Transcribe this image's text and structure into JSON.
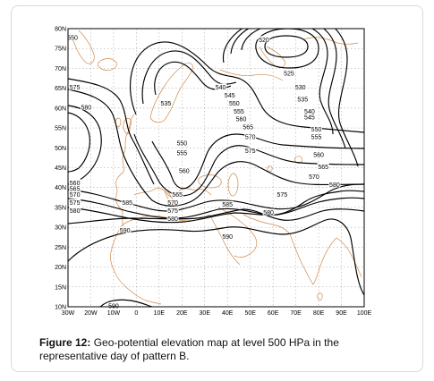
{
  "map": {
    "lat_labels": [
      "10N",
      "15N",
      "20N",
      "25N",
      "30N",
      "35N",
      "40N",
      "45N",
      "50N",
      "55N",
      "60N",
      "65N",
      "70N",
      "75N",
      "80N"
    ],
    "lon_labels": [
      "30W",
      "20W",
      "10W",
      "0",
      "10E",
      "20E",
      "30E",
      "40E",
      "50E",
      "60E",
      "70E",
      "80E",
      "90E",
      "100E"
    ],
    "contour_labels": [
      {
        "text": "550",
        "lon": -28,
        "lat": 77.5
      },
      {
        "text": "575",
        "lon": -27,
        "lat": 65
      },
      {
        "text": "580",
        "lon": -22,
        "lat": 60
      },
      {
        "text": "520",
        "lon": 56,
        "lat": 77
      },
      {
        "text": "525",
        "lon": 67,
        "lat": 68.5
      },
      {
        "text": "530",
        "lon": 72,
        "lat": 65
      },
      {
        "text": "535",
        "lon": 73,
        "lat": 62
      },
      {
        "text": "540",
        "lon": 76,
        "lat": 59
      },
      {
        "text": "545",
        "lon": 76,
        "lat": 57.5
      },
      {
        "text": "550",
        "lon": 79,
        "lat": 54.5
      },
      {
        "text": "555",
        "lon": 79,
        "lat": 52.5
      },
      {
        "text": "560",
        "lon": 80,
        "lat": 48
      },
      {
        "text": "565",
        "lon": 82,
        "lat": 45
      },
      {
        "text": "570",
        "lon": 78,
        "lat": 42.5
      },
      {
        "text": "540",
        "lon": 37,
        "lat": 65
      },
      {
        "text": "545",
        "lon": 41,
        "lat": 63
      },
      {
        "text": "550",
        "lon": 43,
        "lat": 61
      },
      {
        "text": "555",
        "lon": 45,
        "lat": 59
      },
      {
        "text": "560",
        "lon": 46,
        "lat": 57
      },
      {
        "text": "565",
        "lon": 49,
        "lat": 55
      },
      {
        "text": "570",
        "lon": 50,
        "lat": 52.5
      },
      {
        "text": "575",
        "lon": 50,
        "lat": 49
      },
      {
        "text": "535",
        "lon": 13,
        "lat": 61
      },
      {
        "text": "550",
        "lon": 20,
        "lat": 51
      },
      {
        "text": "555",
        "lon": 20,
        "lat": 48.5
      },
      {
        "text": "560",
        "lon": 21,
        "lat": 44
      },
      {
        "text": "565",
        "lon": 18,
        "lat": 38
      },
      {
        "text": "570",
        "lon": 16,
        "lat": 36
      },
      {
        "text": "575",
        "lon": 16,
        "lat": 34
      },
      {
        "text": "580",
        "lon": 16,
        "lat": 32
      },
      {
        "text": "560",
        "lon": -27,
        "lat": 41
      },
      {
        "text": "565",
        "lon": -27,
        "lat": 39.5
      },
      {
        "text": "570",
        "lon": -27,
        "lat": 38
      },
      {
        "text": "575",
        "lon": -27,
        "lat": 36
      },
      {
        "text": "580",
        "lon": -27,
        "lat": 34
      },
      {
        "text": "585",
        "lon": -4,
        "lat": 36
      },
      {
        "text": "585",
        "lon": 40,
        "lat": 35.5
      },
      {
        "text": "575",
        "lon": 64,
        "lat": 38
      },
      {
        "text": "580",
        "lon": 58,
        "lat": 33.5
      },
      {
        "text": "580",
        "lon": 87,
        "lat": 40.5
      },
      {
        "text": "590",
        "lon": -5,
        "lat": 29
      },
      {
        "text": "590",
        "lon": 40,
        "lat": 27.5
      },
      {
        "text": "590",
        "lon": -10,
        "lat": 10
      }
    ]
  },
  "caption": {
    "label": "Figure 12:",
    "text": " Geo-potential elevation map at level 500 HPa in the representative day of pattern B."
  },
  "colors": {
    "contour": "#000000",
    "coastline": "#d08a4a",
    "grid": "#9a9a9a"
  }
}
